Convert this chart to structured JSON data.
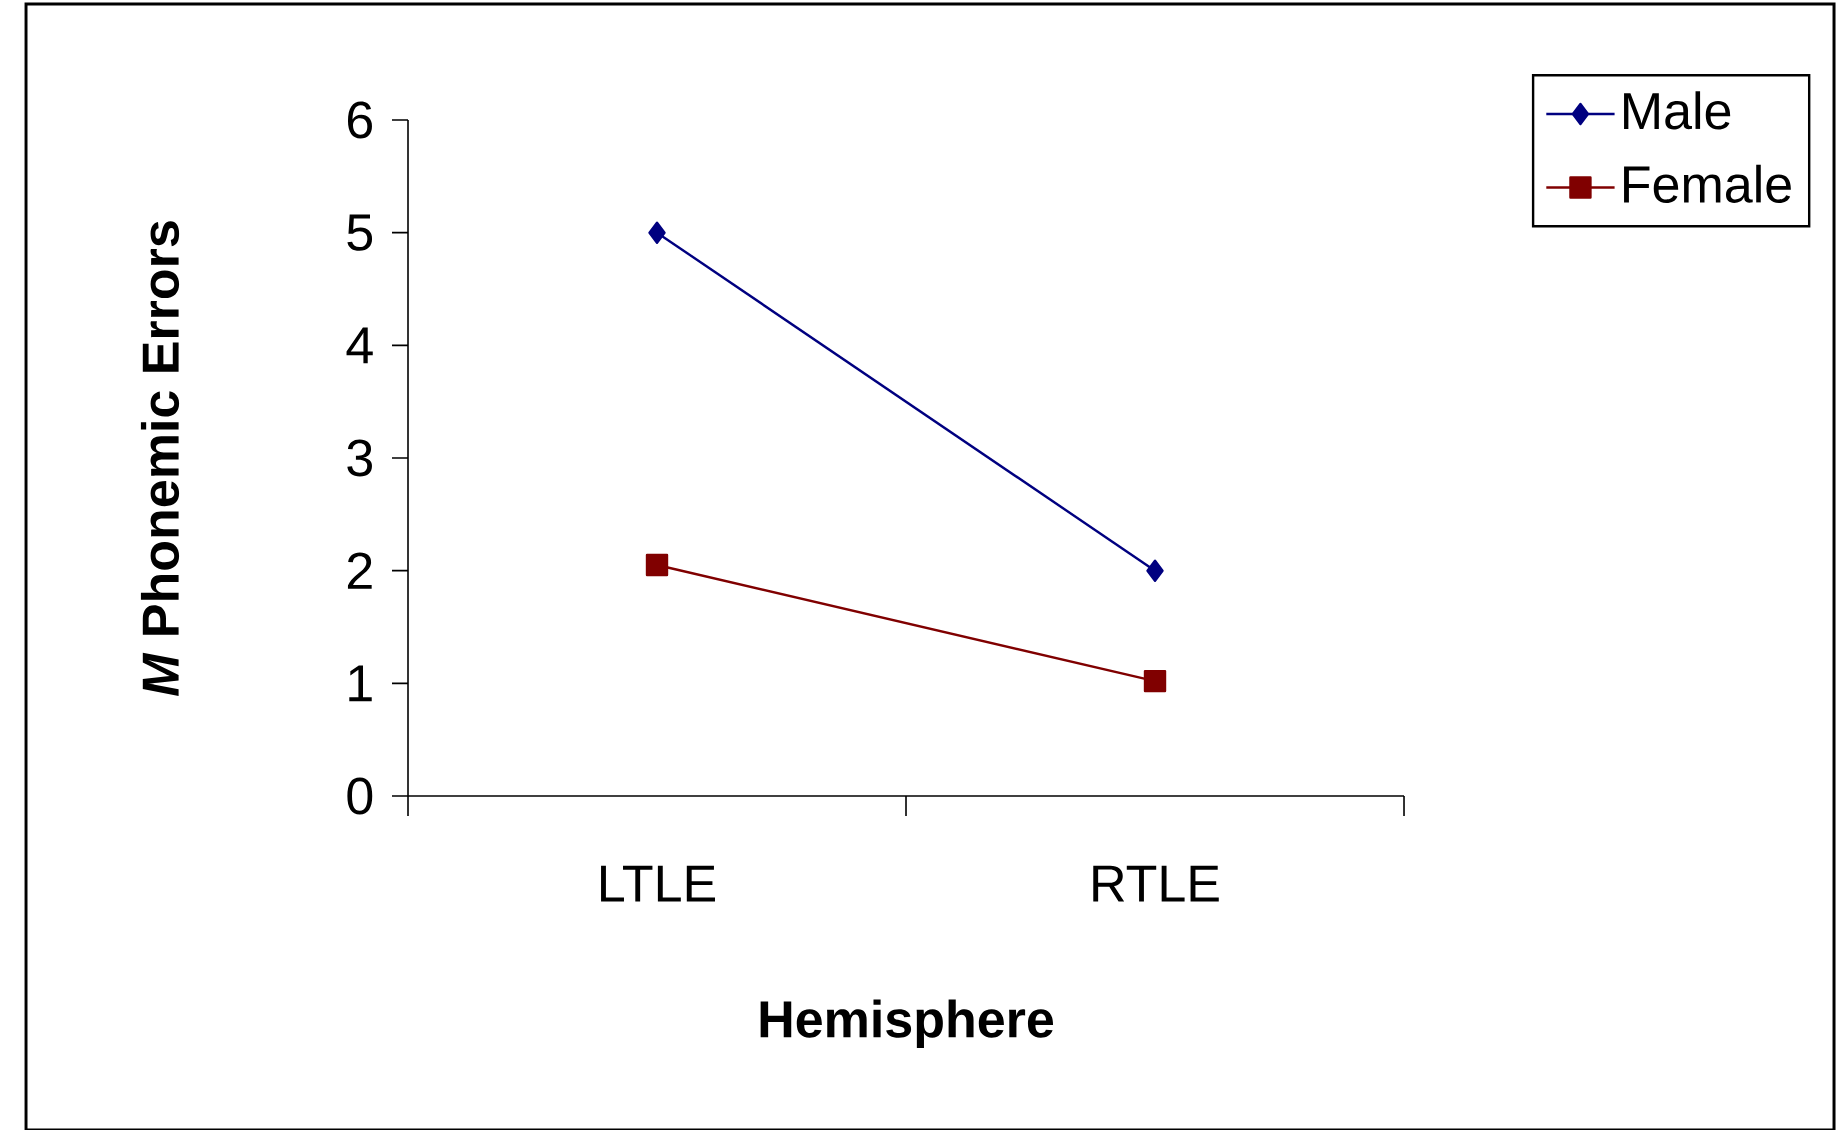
{
  "chart_data": {
    "type": "line",
    "xlabel": "Hemisphere",
    "ylabel": "*M* Phonemic Errors",
    "categories": [
      "LTLE",
      "RTLE"
    ],
    "series": [
      {
        "name": "Male",
        "color": "#000080",
        "marker": "diamond",
        "values": [
          5,
          2
        ]
      },
      {
        "name": "Female",
        "color": "#800000",
        "marker": "square",
        "values": [
          2.05,
          1.02
        ]
      }
    ],
    "ylim": [
      0,
      6
    ],
    "yticks": [
      0,
      1,
      2,
      3,
      4,
      5,
      6
    ],
    "legend": "top right",
    "grid": false
  }
}
